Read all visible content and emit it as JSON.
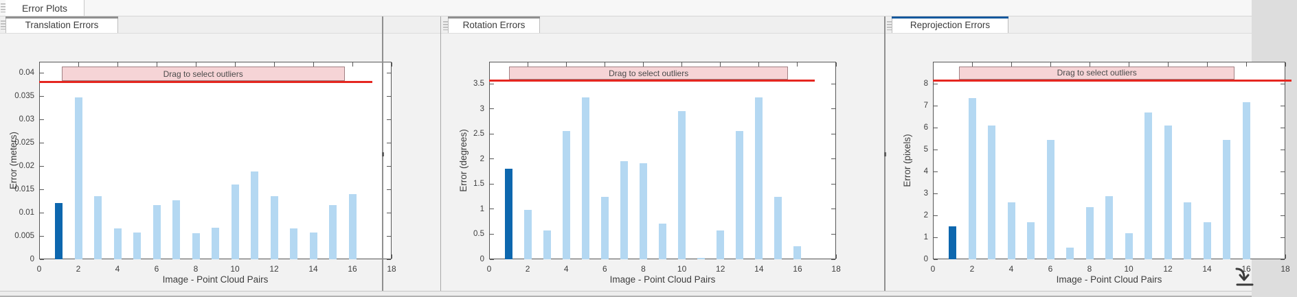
{
  "window": {
    "document_tab": "Error Plots"
  },
  "panels": [
    {
      "tab": "Translation Errors",
      "accent": "#8f8f8f",
      "selected": false
    },
    {
      "tab": "Rotation Errors",
      "accent": "#8f8f8f",
      "selected": false
    },
    {
      "tab": "Reprojection Errors",
      "accent": "#15599d",
      "selected": true
    }
  ],
  "chart_data": [
    {
      "type": "bar",
      "title": "Translation Errors",
      "xlabel": "Image - Point Cloud Pairs",
      "ylabel": "Error (meters)",
      "x": [
        1,
        2,
        3,
        4,
        5,
        6,
        7,
        8,
        9,
        10,
        11,
        12,
        13,
        14,
        15,
        16
      ],
      "values": [
        0.012,
        0.0347,
        0.0135,
        0.0066,
        0.0058,
        0.0116,
        0.0127,
        0.0056,
        0.0067,
        0.016,
        0.0188,
        0.0135,
        0.0066,
        0.0058,
        0.0116,
        0.014
      ],
      "highlighted_index": 1,
      "xlim": [
        0,
        18
      ],
      "ylim": [
        0,
        0.0424
      ],
      "xticks": [
        0,
        2,
        4,
        6,
        8,
        10,
        12,
        14,
        16,
        18
      ],
      "yticks": [
        0,
        0.005,
        0.01,
        0.015,
        0.02,
        0.025,
        0.03,
        0.035,
        0.04
      ],
      "ytick_labels": [
        "0",
        "0.005",
        "0.01",
        "0.015",
        "0.02",
        "0.025",
        "0.03",
        "0.035",
        "0.04"
      ],
      "grid": false,
      "legend": null,
      "threshold": {
        "value": 0.038,
        "x_end": 17.0
      },
      "overlay": {
        "label": "Drag to select outliers",
        "x_start": 1.15,
        "x_end": 15.6
      }
    },
    {
      "type": "bar",
      "title": "Rotation Errors",
      "xlabel": "Image - Point Cloud Pairs",
      "ylabel": "Error (degrees)",
      "x": [
        1,
        2,
        3,
        4,
        5,
        6,
        7,
        8,
        9,
        10,
        11,
        12,
        13,
        14,
        15,
        16
      ],
      "values": [
        1.8,
        0.98,
        0.57,
        2.56,
        3.23,
        1.25,
        1.95,
        1.92,
        0.71,
        2.96,
        0.03,
        0.57,
        2.56,
        3.23,
        1.25,
        0.26
      ],
      "highlighted_index": 1,
      "xlim": [
        0,
        18
      ],
      "ylim": [
        0,
        3.94
      ],
      "xticks": [
        0,
        2,
        4,
        6,
        8,
        10,
        12,
        14,
        16,
        18
      ],
      "yticks": [
        0,
        0.5,
        1,
        1.5,
        2,
        2.5,
        3,
        3.5
      ],
      "ytick_labels": [
        "0",
        "0.5",
        "1",
        "1.5",
        "2",
        "2.5",
        "3",
        "3.5"
      ],
      "grid": false,
      "legend": null,
      "threshold": {
        "value": 3.56,
        "x_end": 16.9
      },
      "overlay": {
        "label": "Drag to select outliers",
        "x_start": 1.05,
        "x_end": 15.5
      }
    },
    {
      "type": "bar",
      "title": "Reprojection Errors",
      "xlabel": "Image - Point Cloud Pairs",
      "ylabel": "Error (pixels)",
      "x": [
        1,
        2,
        3,
        4,
        5,
        6,
        7,
        8,
        9,
        10,
        11,
        12,
        13,
        14,
        15,
        16
      ],
      "values": [
        1.5,
        7.35,
        6.1,
        2.58,
        1.68,
        5.45,
        0.52,
        2.38,
        2.87,
        1.2,
        6.7,
        6.1,
        2.58,
        1.68,
        5.45,
        7.15
      ],
      "highlighted_index": 1,
      "xlim": [
        0,
        18
      ],
      "ylim": [
        0,
        9.0
      ],
      "xticks": [
        0,
        2,
        4,
        6,
        8,
        10,
        12,
        14,
        16,
        18
      ],
      "yticks": [
        0,
        1,
        2,
        3,
        4,
        5,
        6,
        7,
        8
      ],
      "ytick_labels": [
        "0",
        "1",
        "2",
        "3",
        "4",
        "5",
        "6",
        "7",
        "8"
      ],
      "grid": false,
      "legend": null,
      "threshold": {
        "value": 8.15,
        "x_end": 18.3
      },
      "overlay": {
        "label": "Drag to select outliers",
        "x_start": 1.35,
        "x_end": 15.4
      }
    }
  ],
  "colors": {
    "bar": "#b4d8f2",
    "bar_selected": "#0d67ae",
    "threshold_line": "#e5261f",
    "overlay_fill": "#f6d4d6",
    "overlay_border": "#a08083",
    "accent_gray": "#8f8f8f",
    "accent_blue": "#15599d"
  },
  "icons": {
    "grip": "drag-grip",
    "export": "export-down-arrow"
  }
}
